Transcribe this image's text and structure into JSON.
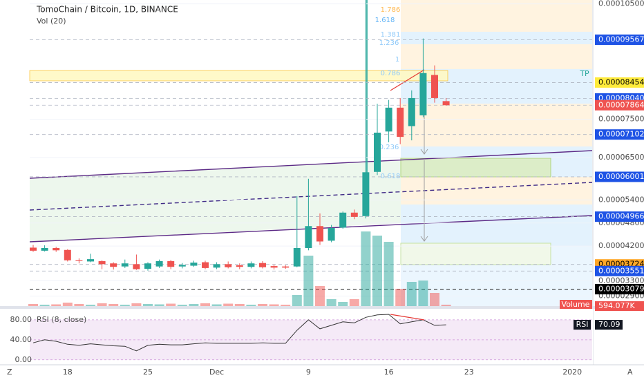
{
  "chart_data": {
    "type": "candlestick",
    "title": "TomoChain / Bitcoin, 1D, BINANCE",
    "categories": [
      null,
      null,
      null,
      "18",
      null,
      null,
      null,
      null,
      null,
      null,
      "25",
      null,
      null,
      null,
      null,
      null,
      "Dec",
      null,
      null,
      null,
      null,
      null,
      null,
      null,
      "9",
      null,
      null,
      null,
      null,
      null,
      null,
      "16",
      null,
      null,
      null,
      null,
      null,
      null,
      "23",
      null,
      null,
      null,
      null,
      null,
      null,
      null,
      null,
      "2020"
    ],
    "open": [
      4.16e-05,
      4.08e-05,
      4.15e-05,
      4.1e-05,
      3.83e-05,
      3.8e-05,
      3.81e-05,
      3.75e-05,
      3.67e-05,
      3.73e-05,
      3.61e-05,
      3.67e-05,
      3.81e-05,
      3.67e-05,
      3.69e-05,
      3.78e-05,
      3.64e-05,
      3.73e-05,
      3.7e-05,
      3.66e-05,
      3.76e-05,
      3.68e-05,
      3.67e-05,
      3.67e-05,
      4.15e-05,
      4.72e-05,
      4.34e-05,
      4.68e-05,
      5.07e-05,
      4.98e-05,
      6.13e-05,
      7.18e-05,
      7.8e-05,
      7.32e-05,
      7.6e-05,
      8.65e-05,
      7.97e-05,
      null,
      null,
      null,
      null,
      null,
      null,
      null,
      null,
      null,
      null,
      null
    ],
    "high": [
      4.23e-05,
      4.22e-05,
      4.18e-05,
      4.12e-05,
      3.88e-05,
      4e-05,
      3.83e-05,
      3.78e-05,
      3.85e-05,
      3.98e-05,
      3.78e-05,
      3.85e-05,
      3.84e-05,
      3.76e-05,
      3.82e-05,
      3.82e-05,
      3.78e-05,
      3.8e-05,
      3.75e-05,
      3.8e-05,
      3.81e-05,
      3.72e-05,
      3.7e-05,
      5.5e-05,
      5.95e-05,
      5.05e-05,
      4.75e-05,
      5.1e-05,
      5.15e-05,
      0.000106,
      7.9e-05,
      8e-05,
      8.05e-05,
      8.25e-05,
      9.6e-05,
      8.9e-05,
      8.05e-05,
      null,
      null,
      null,
      null,
      null,
      null,
      null,
      null,
      null,
      null,
      null
    ],
    "low": [
      4.05e-05,
      4.06e-05,
      4.05e-05,
      3.8e-05,
      3.75e-05,
      3.78e-05,
      3.6e-05,
      3.59e-05,
      3.63e-05,
      3.58e-05,
      3.56e-05,
      3.63e-05,
      3.6e-05,
      3.62e-05,
      3.66e-05,
      3.6e-05,
      3.6e-05,
      3.62e-05,
      3.6e-05,
      3.62e-05,
      3.62e-05,
      3.59e-05,
      3.61e-05,
      3.65e-05,
      4.09e-05,
      4.23e-05,
      4.3e-05,
      4.65e-05,
      4.9e-05,
      4.92e-05,
      6.05e-05,
      6.9e-05,
      6.85e-05,
      6.95e-05,
      7.55e-05,
      7.93e-05,
      7.85e-05,
      null,
      null,
      null,
      null,
      null,
      null,
      null,
      null,
      null,
      null,
      null
    ],
    "close": [
      4.08e-05,
      4.15e-05,
      4.09e-05,
      3.83e-05,
      3.81e-05,
      3.86e-05,
      3.73e-05,
      3.66e-05,
      3.75e-05,
      3.6e-05,
      3.75e-05,
      3.81e-05,
      3.66e-05,
      3.71e-05,
      3.77e-05,
      3.63e-05,
      3.73e-05,
      3.65e-05,
      3.66e-05,
      3.75e-05,
      3.65e-05,
      3.64e-05,
      3.64e-05,
      4.15e-05,
      4.72e-05,
      4.32e-05,
      4.67e-05,
      5.07e-05,
      4.96e-05,
      6.12e-05,
      7.15e-05,
      7.8e-05,
      7.04e-05,
      8.05e-05,
      8.7e-05,
      8.05e-05,
      7.864e-05,
      null,
      null,
      null,
      null,
      null,
      null,
      null,
      null,
      null,
      null,
      null
    ],
    "up_color": "#26a69a",
    "down_color": "#ef5350",
    "ylim": [
      2.64e-05,
      0.000106
    ],
    "yticks": [
      {
        "value": 0.000105,
        "label": "0.00010500"
      },
      {
        "value": 7.5e-05,
        "label": "0.00007500"
      },
      {
        "value": 6.5e-05,
        "label": "0.00006500"
      },
      {
        "value": 5.4e-05,
        "label": "0.00005400"
      },
      {
        "value": 4.8e-05,
        "label": "0.00004800"
      },
      {
        "value": 4.2e-05,
        "label": "0.00004200"
      },
      {
        "value": 3.3e-05,
        "label": "0.00003300"
      },
      {
        "value": 2.9e-05,
        "label": "0.00002900"
      }
    ],
    "grid": true,
    "price_levels": [
      {
        "value": 9.567e-05,
        "label": "0.00009567",
        "color": "#1e53e5",
        "text_color": "#ffffff"
      },
      {
        "value": 8.454e-05,
        "label": "0.00008454",
        "color": "#ffeb3b",
        "text_color": "#000000"
      },
      {
        "value": 8.04e-05,
        "label": "0.00008040",
        "color": "#1e53e5",
        "text_color": "#ffffff"
      },
      {
        "value": 7.864e-05,
        "label": "0.00007864",
        "color": "#ef5350",
        "text_color": "#ffffff"
      },
      {
        "value": 7.102e-05,
        "label": "0.00007102",
        "color": "#1e53e5",
        "text_color": "#ffffff"
      },
      {
        "value": 6.001e-05,
        "label": "0.00006001",
        "color": "#1e53e5",
        "text_color": "#ffffff"
      },
      {
        "value": 4.966e-05,
        "label": "0.00004966",
        "color": "#1e53e5",
        "text_color": "#ffffff"
      },
      {
        "value": 3.724e-05,
        "label": "0.00003724",
        "color": "#ffa726",
        "text_color": "#000000"
      },
      {
        "value": 3.551e-05,
        "label": "0.00003551",
        "color": "#1e53e5",
        "text_color": "#ffffff"
      },
      {
        "value": 3.079e-05,
        "label": "0.00003079",
        "color": "#000000",
        "text_color": "#ffffff"
      }
    ],
    "fib_labels": [
      "1.786",
      "1.618",
      "1.381",
      "1.236",
      "1",
      "0.786",
      "0.236",
      "0.618"
    ],
    "target_label": "TP",
    "volume": {
      "title": "Vol (20)",
      "name": "Volume",
      "values": [
        900000,
        600000,
        750000,
        1500000,
        900000,
        600000,
        1200000,
        900000,
        600000,
        1200000,
        900000,
        750000,
        1050000,
        600000,
        900000,
        1200000,
        750000,
        1050000,
        900000,
        600000,
        900000,
        750000,
        600000,
        4800000,
        21900000,
        8700000,
        3000000,
        1800000,
        3000000,
        32400000,
        30600000,
        27900000,
        7500000,
        10500000,
        11100000,
        5700000,
        594077,
        null,
        null,
        null,
        null,
        null,
        null,
        null,
        null,
        null,
        null,
        null
      ],
      "value_labels": [
        null,
        null,
        null,
        null,
        null,
        null,
        null,
        null,
        null,
        null,
        null,
        null,
        null,
        null,
        null,
        null,
        null,
        null,
        null,
        null,
        null,
        null,
        null,
        null,
        null,
        null,
        null,
        null,
        null,
        null,
        null,
        null,
        null,
        null,
        null,
        null,
        "594.077K",
        null,
        null,
        null,
        null,
        null,
        null,
        null,
        null,
        null,
        null,
        null
      ]
    },
    "rsi": {
      "title": "RSI (8, close)",
      "name": "RSI",
      "color": "#333333",
      "values": [
        34,
        40,
        37,
        31,
        29,
        32,
        30,
        28,
        27,
        18,
        29,
        31,
        30,
        30,
        32,
        34,
        33,
        33,
        33,
        33,
        34,
        33,
        33,
        59,
        80,
        62,
        69,
        76,
        74,
        85,
        90,
        91,
        72,
        76,
        80,
        69,
        70.09,
        null,
        null,
        null,
        null,
        null,
        null,
        null,
        null,
        null,
        null,
        null
      ],
      "ylim": [
        -10,
        102
      ],
      "yticks": [
        {
          "value": 80,
          "label": "80.00"
        },
        {
          "value": 40,
          "label": "40.00"
        },
        {
          "value": 0,
          "label": "0.00"
        }
      ]
    },
    "controls": [
      "Z",
      "A"
    ]
  }
}
